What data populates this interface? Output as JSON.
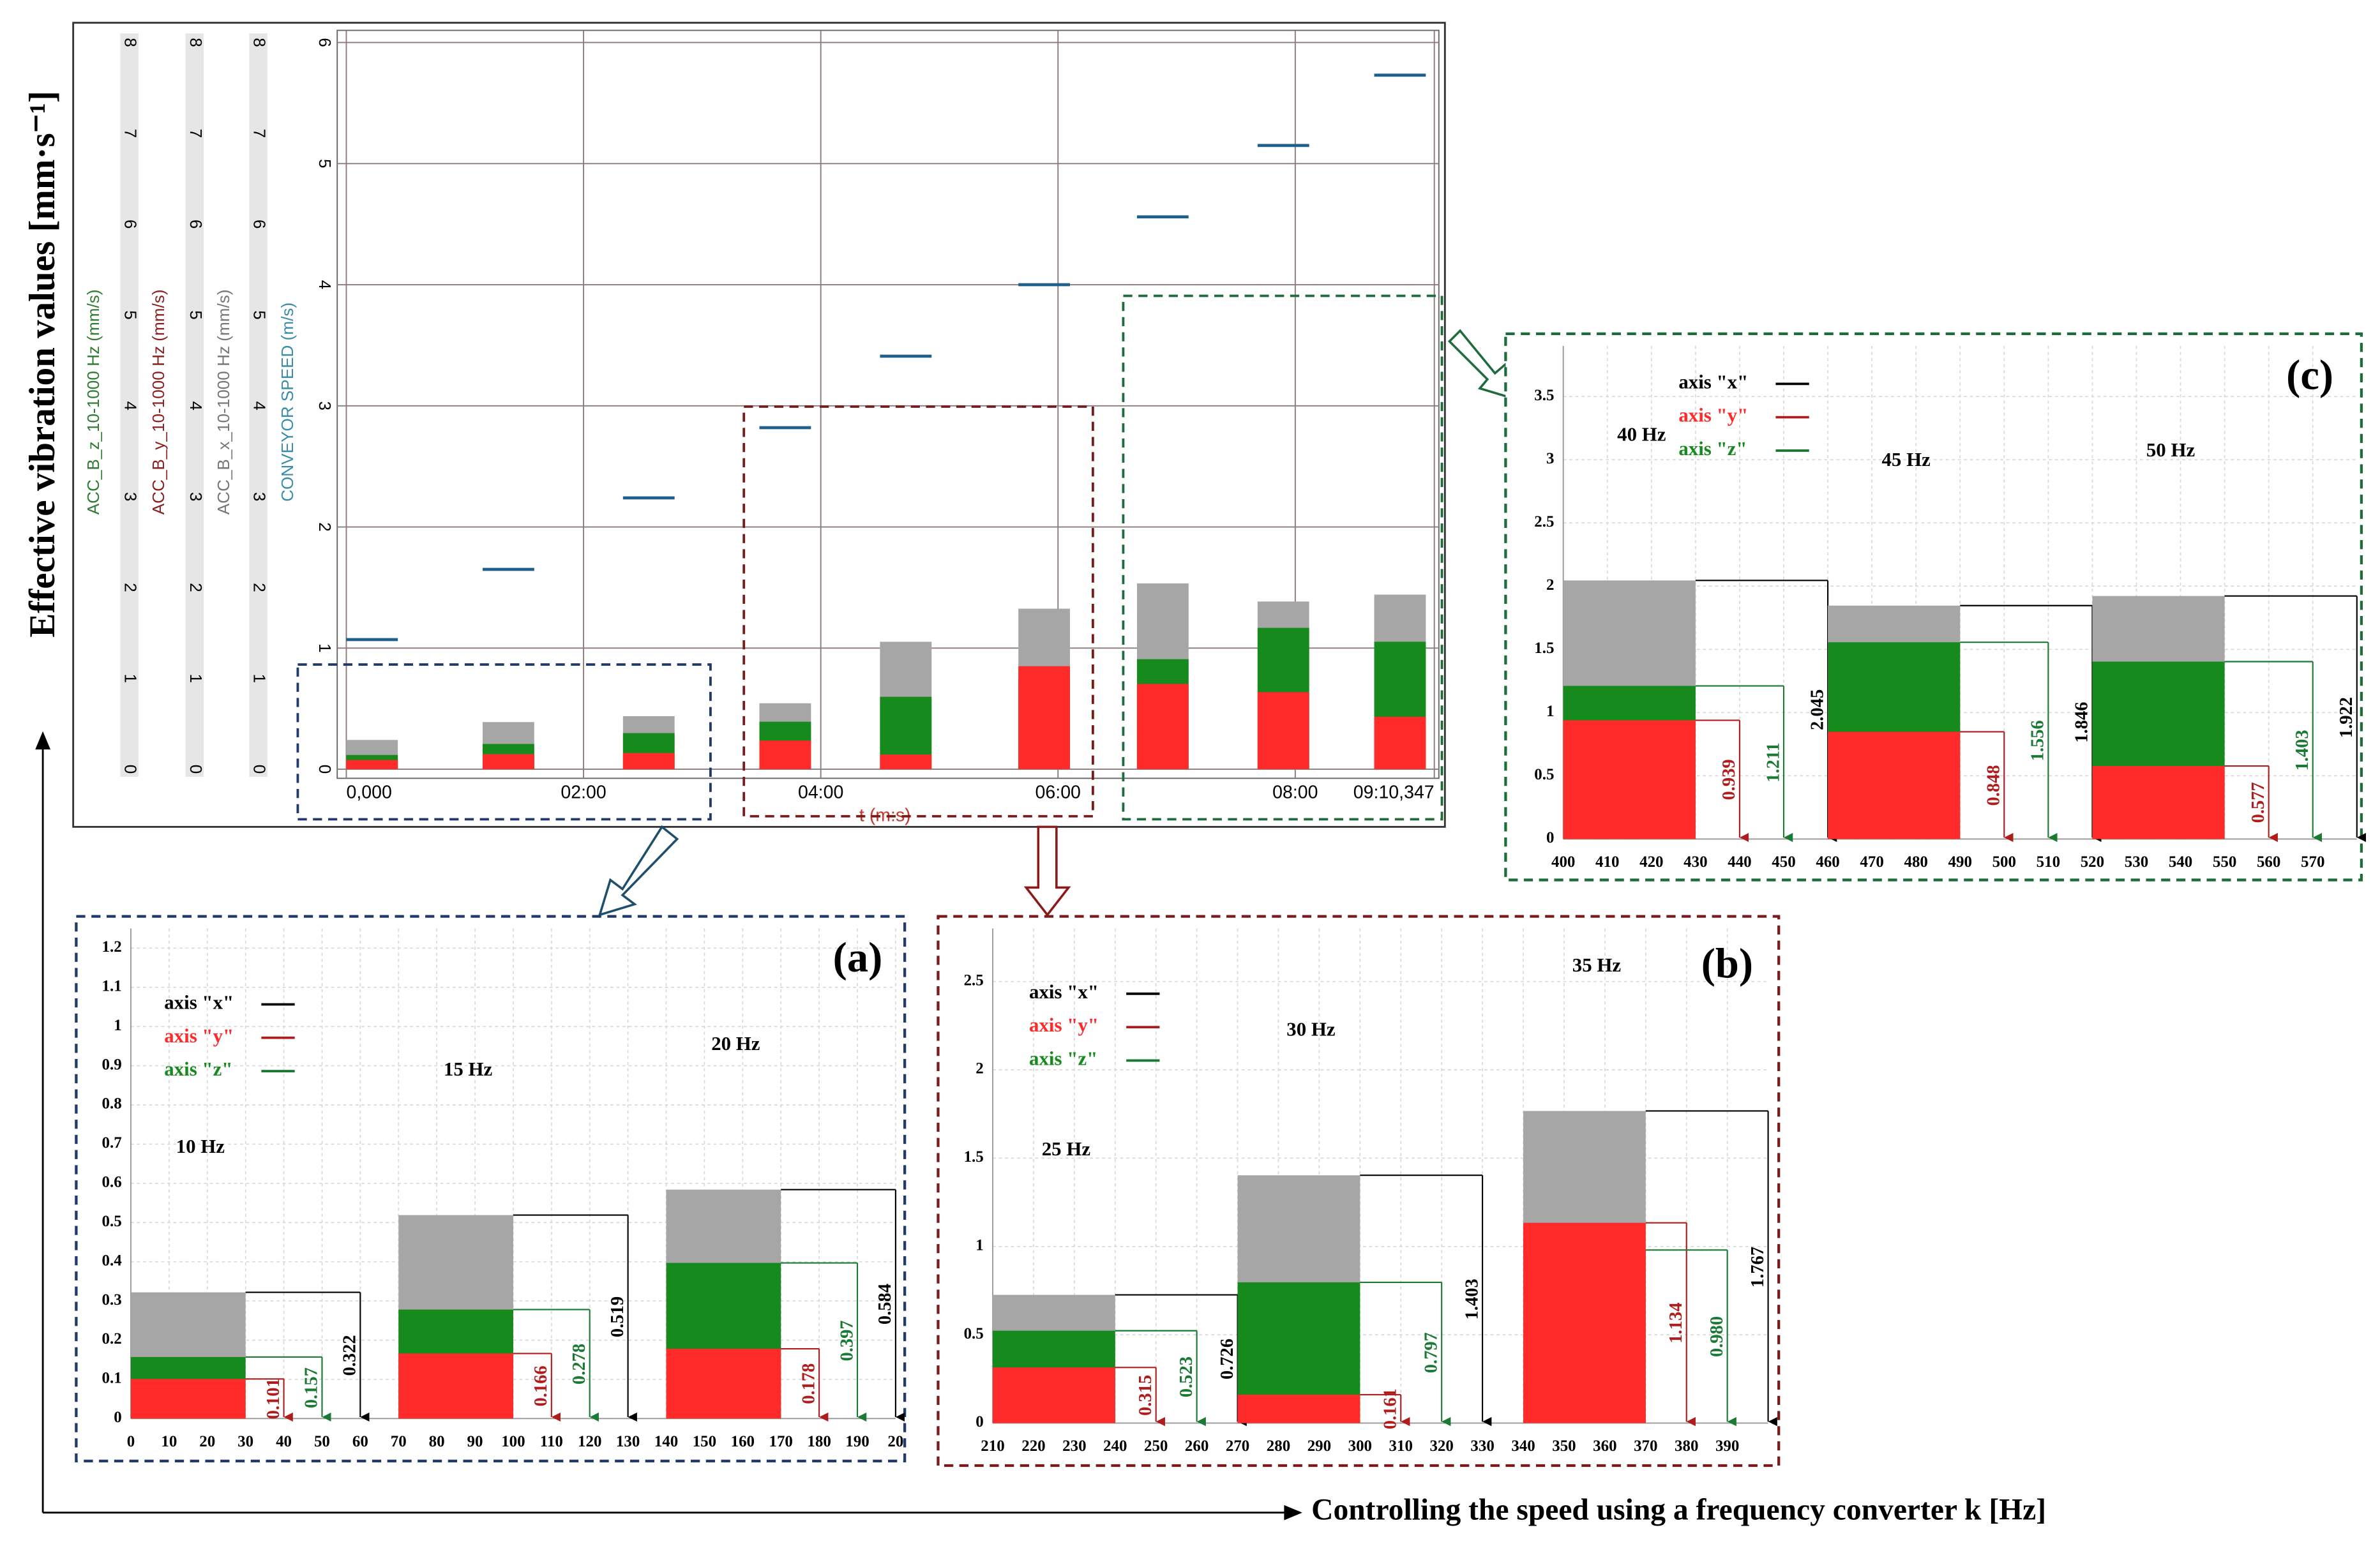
{
  "ylabel": "Effective vibration values [mm·s⁻¹]",
  "xlabel": "Controlling the speed using a frequency converter k [Hz]",
  "chart_data": [
    {
      "type": "overview",
      "xlabel": "t (m:s)",
      "xlim": [
        0,
        550.347
      ],
      "xticks": [
        {
          "value": 0,
          "label": "0,000"
        },
        {
          "value": 120,
          "label": "02:00"
        },
        {
          "value": 240,
          "label": "04:00"
        },
        {
          "value": 360,
          "label": "06:00"
        },
        {
          "value": 480,
          "label": "08:00"
        },
        {
          "value": 550.347,
          "label": "09:10,347"
        }
      ],
      "ylabel": "CONVEYOR SPEED (m/s)",
      "ylim": [
        0,
        6
      ],
      "yticks": [
        0,
        1,
        2,
        3,
        4,
        5,
        6
      ],
      "y2labels": [
        "ACC_B_z_10-1000 Hz (mm/s)",
        "ACC_B_y_10-1000 Hz (mm/s)",
        "ACC_B_x_10-1000 Hz (mm/s)"
      ],
      "y2lim": [
        0,
        8
      ],
      "y2ticks": [
        0,
        1,
        2,
        3,
        4,
        5,
        6,
        7,
        8
      ],
      "grid": true,
      "speed": {
        "color": "#1f5f8b",
        "x": [
          13,
          82,
          153,
          222,
          283,
          353,
          413,
          474,
          533
        ],
        "values": [
          1.07,
          1.65,
          2.24,
          2.82,
          3.41,
          4.0,
          4.56,
          5.15,
          5.73
        ]
      }
    },
    {
      "type": "segments",
      "label": "(a)",
      "xlim": [
        0,
        200
      ],
      "xticks": [
        0,
        10,
        20,
        30,
        40,
        50,
        60,
        70,
        80,
        90,
        100,
        110,
        120,
        130,
        140,
        150,
        160,
        170,
        180,
        190,
        {
          "value": 200,
          "label": "20"
        }
      ],
      "ylim": [
        0,
        1.25
      ],
      "yticks": [
        0,
        0.1,
        0.2,
        0.3,
        0.4,
        0.5,
        0.6,
        0.7,
        0.8,
        0.9,
        1,
        1.1,
        1.2
      ],
      "categories": [
        "10 Hz",
        "15 Hz",
        "20 Hz"
      ],
      "x_ranges": [
        [
          0,
          30
        ],
        [
          70,
          100
        ],
        [
          140,
          170
        ]
      ],
      "series": [
        {
          "name": "axis \"x\"",
          "color": "#a6a6a6",
          "legend_color": "#000000",
          "values": [
            0.322,
            0.519,
            0.584
          ],
          "value_labels": [
            "0.322",
            "0.519",
            "0.584"
          ]
        },
        {
          "name": "axis \"y\"",
          "color": "#ff2a2a",
          "legend_color": "#b01c1c",
          "values": [
            0.101,
            0.166,
            0.178
          ],
          "value_labels": [
            "0.101",
            "0.166",
            "0.178"
          ]
        },
        {
          "name": "axis \"z\"",
          "color": "#178a1d",
          "legend_color": "#1a7a34",
          "values": [
            0.157,
            0.278,
            0.397
          ],
          "value_labels": [
            "0.157",
            "0.278",
            "0.397"
          ]
        }
      ]
    },
    {
      "type": "segments",
      "label": "(b)",
      "xlim": [
        210,
        400
      ],
      "xticks": [
        210,
        220,
        230,
        240,
        250,
        260,
        270,
        280,
        290,
        300,
        310,
        320,
        330,
        340,
        350,
        360,
        370,
        380,
        390
      ],
      "ylim": [
        0,
        2.8
      ],
      "yticks": [
        0,
        0.5,
        1,
        1.5,
        2,
        2.5
      ],
      "categories": [
        "25 Hz",
        "30 Hz",
        "35 Hz"
      ],
      "x_ranges": [
        [
          210,
          240
        ],
        [
          270,
          300
        ],
        [
          340,
          370
        ]
      ],
      "series": [
        {
          "name": "axis \"x\"",
          "color": "#a6a6a6",
          "legend_color": "#000000",
          "values": [
            0.726,
            1.403,
            1.767
          ],
          "value_labels": [
            "0.726",
            "1.403",
            "1.767"
          ]
        },
        {
          "name": "axis \"y\"",
          "color": "#ff2a2a",
          "legend_color": "#b01c1c",
          "values": [
            0.315,
            0.161,
            1.134
          ],
          "value_labels": [
            "0.315",
            "0.161",
            "1.134"
          ]
        },
        {
          "name": "axis \"z\"",
          "color": "#178a1d",
          "legend_color": "#1a7a34",
          "values": [
            0.523,
            0.797,
            0.98
          ],
          "value_labels": [
            "0.523",
            "0.797",
            "0.980"
          ]
        }
      ]
    },
    {
      "type": "segments",
      "label": "(c)",
      "xlim": [
        400,
        580
      ],
      "xticks": [
        400,
        410,
        420,
        430,
        440,
        450,
        460,
        470,
        480,
        490,
        500,
        510,
        520,
        530,
        540,
        550,
        560,
        570
      ],
      "ylim": [
        0,
        3.9
      ],
      "yticks": [
        0,
        0.5,
        1,
        1.5,
        2,
        2.5,
        3,
        3.5
      ],
      "categories": [
        "40 Hz",
        "45 Hz",
        "50 Hz"
      ],
      "x_ranges": [
        [
          400,
          430
        ],
        [
          460,
          490
        ],
        [
          520,
          550
        ]
      ],
      "series": [
        {
          "name": "axis \"x\"",
          "color": "#a6a6a6",
          "legend_color": "#000000",
          "values": [
            2.045,
            1.846,
            1.922
          ],
          "value_labels": [
            "2.045",
            "1.846",
            "1.922"
          ]
        },
        {
          "name": "axis \"y\"",
          "color": "#ff2a2a",
          "legend_color": "#b01c1c",
          "values": [
            0.939,
            0.848,
            0.577
          ],
          "value_labels": [
            "0.939",
            "0.848",
            "0.577"
          ]
        },
        {
          "name": "axis \"z\"",
          "color": "#178a1d",
          "legend_color": "#1a7a34",
          "values": [
            1.211,
            1.556,
            1.403
          ],
          "value_labels": [
            "1.211",
            "1.556",
            "1.403"
          ]
        }
      ]
    }
  ]
}
